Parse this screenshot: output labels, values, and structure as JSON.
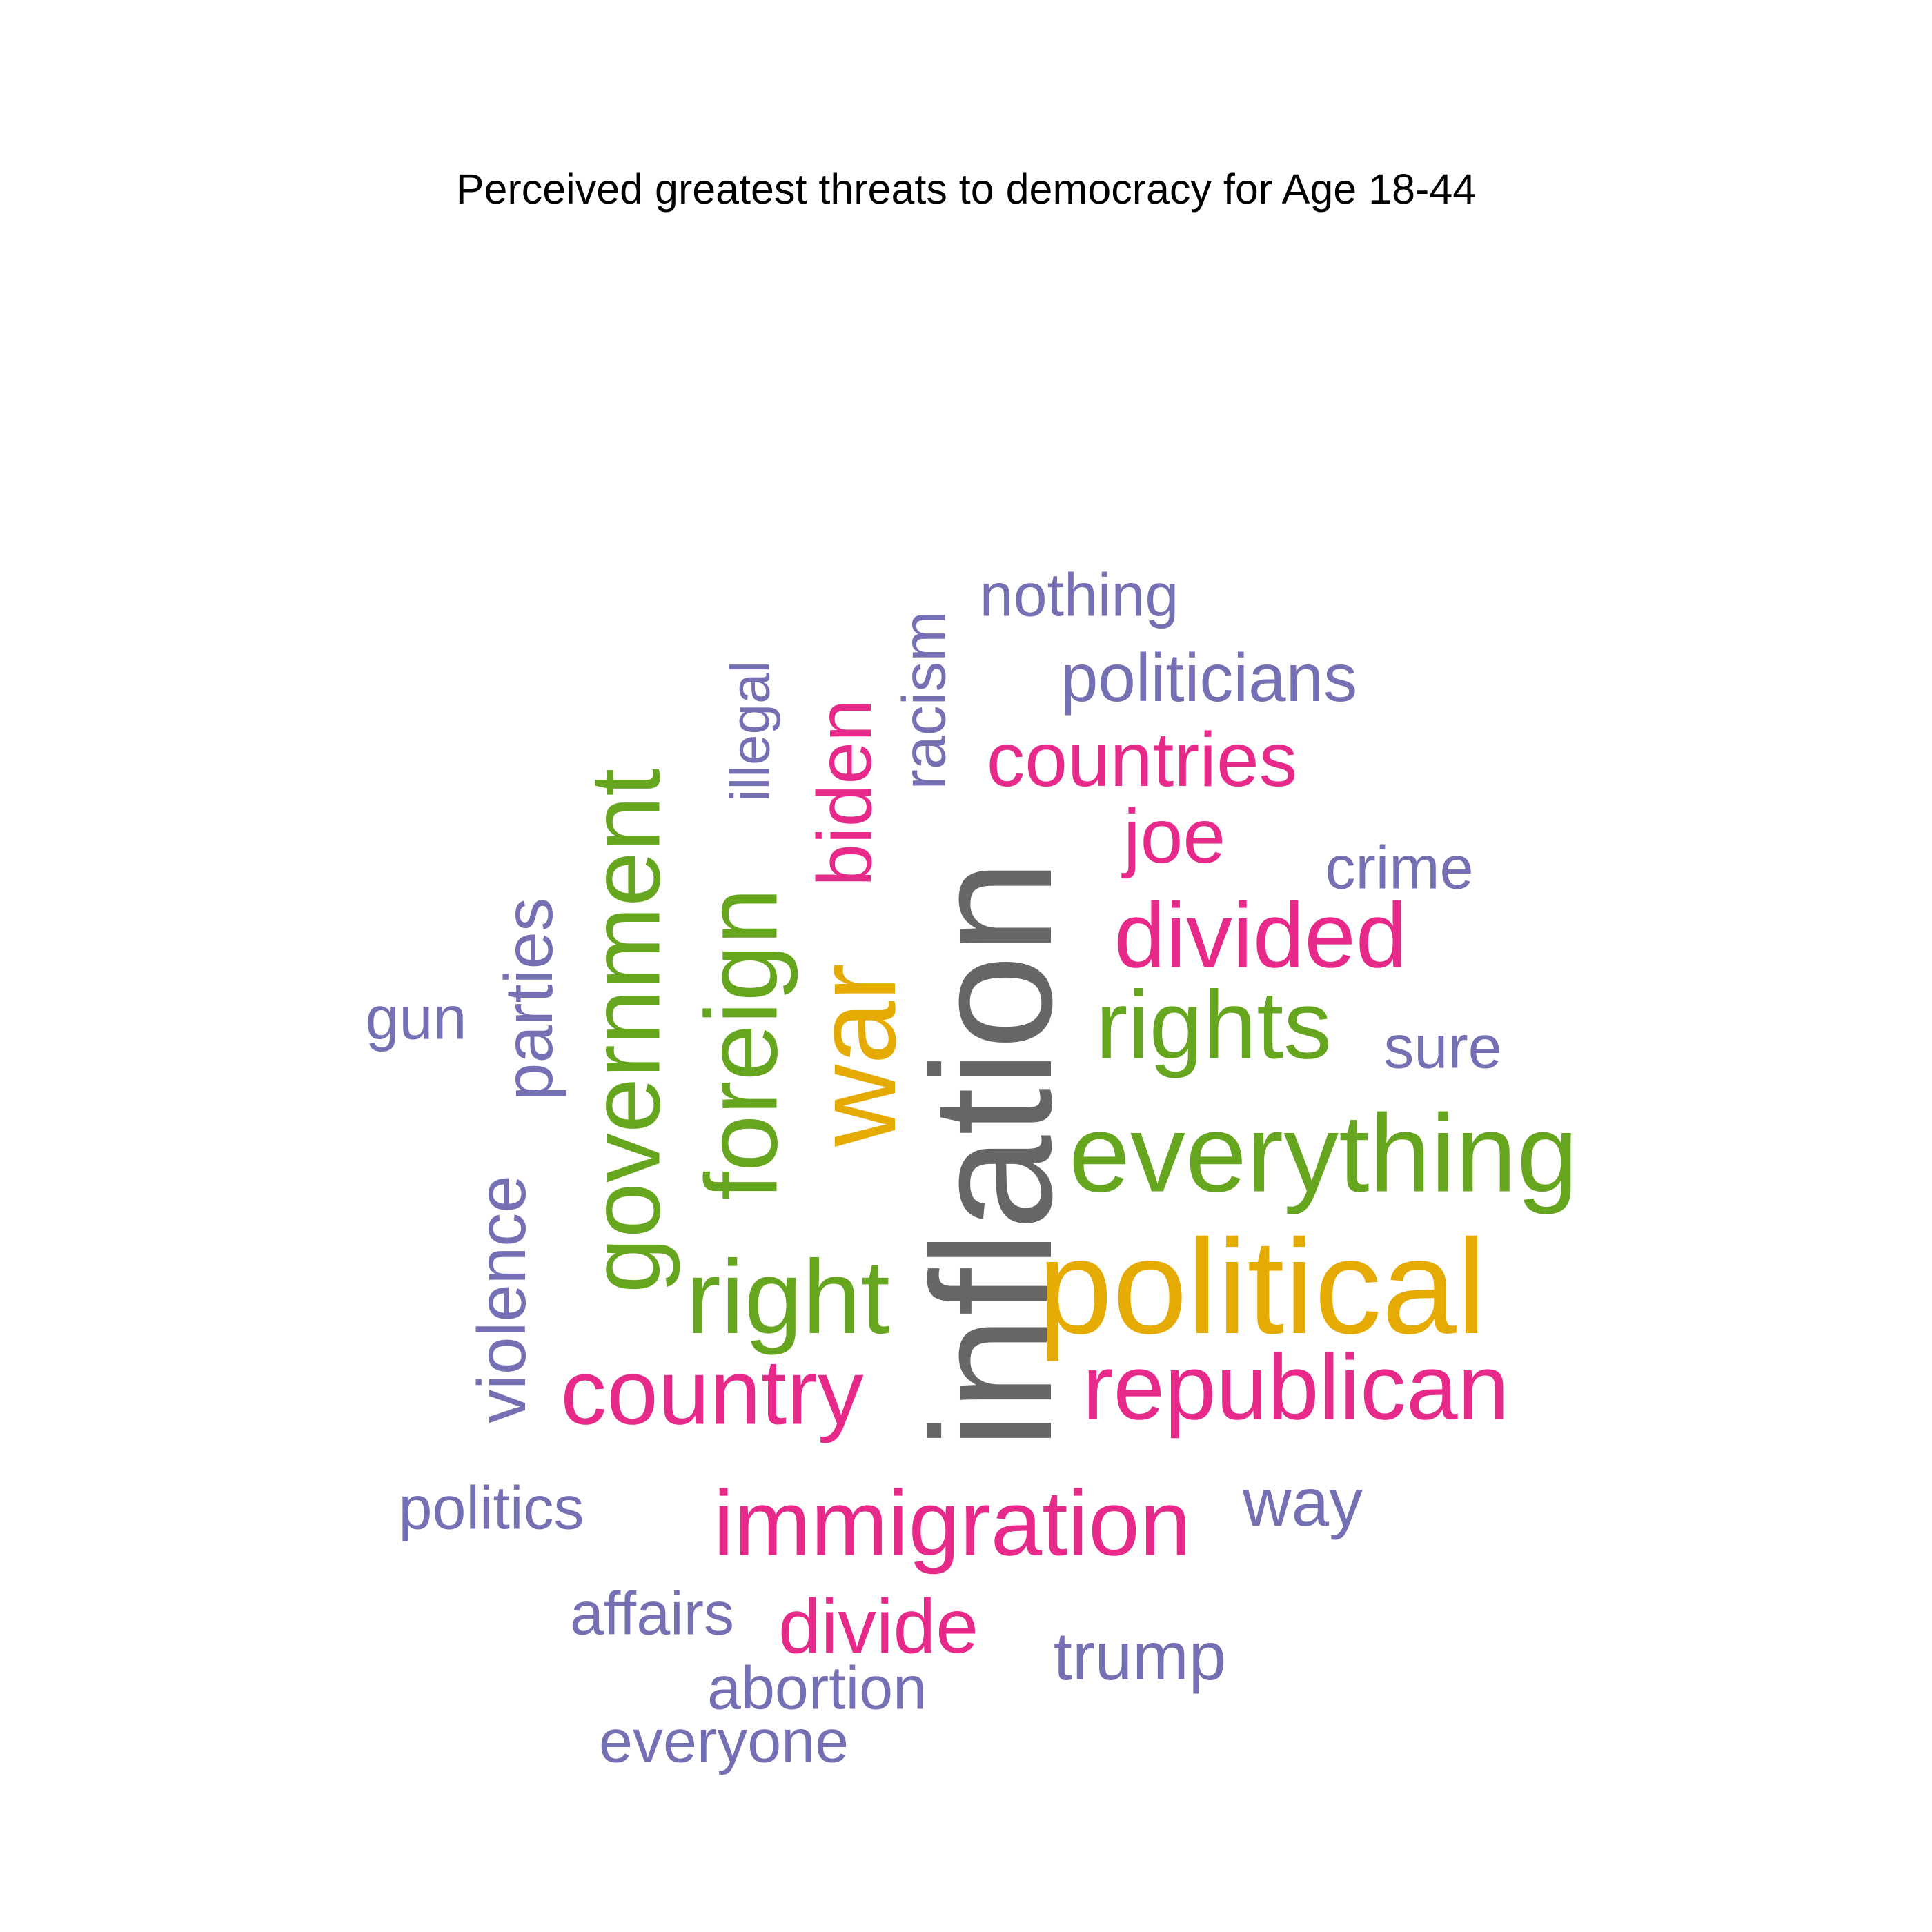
{
  "chart_data": {
    "type": "wordcloud",
    "title": "Perceived greatest threats to democracy for Age 18-44",
    "colors": {
      "gray": "#666666",
      "gold": "#E6AB02",
      "green": "#66A61E",
      "pink": "#E7298A",
      "purple": "#7570B3"
    },
    "words": [
      {
        "text": "inflation",
        "color": "#666666",
        "orientation": "vertical"
      },
      {
        "text": "political",
        "color": "#E6AB02",
        "orientation": "horizontal"
      },
      {
        "text": "war",
        "color": "#E6AB02",
        "orientation": "vertical"
      },
      {
        "text": "everything",
        "color": "#66A61E",
        "orientation": "horizontal"
      },
      {
        "text": "government",
        "color": "#66A61E",
        "orientation": "vertical"
      },
      {
        "text": "foreign",
        "color": "#66A61E",
        "orientation": "vertical"
      },
      {
        "text": "right",
        "color": "#66A61E",
        "orientation": "horizontal"
      },
      {
        "text": "rights",
        "color": "#66A61E",
        "orientation": "horizontal"
      },
      {
        "text": "republican",
        "color": "#E7298A",
        "orientation": "horizontal"
      },
      {
        "text": "immigration",
        "color": "#E7298A",
        "orientation": "horizontal"
      },
      {
        "text": "country",
        "color": "#E7298A",
        "orientation": "horizontal"
      },
      {
        "text": "divided",
        "color": "#E7298A",
        "orientation": "horizontal"
      },
      {
        "text": "countries",
        "color": "#E7298A",
        "orientation": "horizontal"
      },
      {
        "text": "joe",
        "color": "#E7298A",
        "orientation": "horizontal"
      },
      {
        "text": "biden",
        "color": "#E7298A",
        "orientation": "vertical"
      },
      {
        "text": "divide",
        "color": "#E7298A",
        "orientation": "horizontal"
      },
      {
        "text": "violence",
        "color": "#7570B3",
        "orientation": "vertical"
      },
      {
        "text": "parties",
        "color": "#7570B3",
        "orientation": "vertical"
      },
      {
        "text": "politicians",
        "color": "#7570B3",
        "orientation": "horizontal"
      },
      {
        "text": "trump",
        "color": "#7570B3",
        "orientation": "horizontal"
      },
      {
        "text": "racism",
        "color": "#7570B3",
        "orientation": "vertical"
      },
      {
        "text": "way",
        "color": "#7570B3",
        "orientation": "horizontal"
      },
      {
        "text": "abortion",
        "color": "#7570B3",
        "orientation": "horizontal"
      },
      {
        "text": "politics",
        "color": "#7570B3",
        "orientation": "horizontal"
      },
      {
        "text": "everyone",
        "color": "#7570B3",
        "orientation": "horizontal"
      },
      {
        "text": "affairs",
        "color": "#7570B3",
        "orientation": "horizontal"
      },
      {
        "text": "nothing",
        "color": "#7570B3",
        "orientation": "horizontal"
      },
      {
        "text": "crime",
        "color": "#7570B3",
        "orientation": "horizontal"
      },
      {
        "text": "sure",
        "color": "#7570B3",
        "orientation": "horizontal"
      },
      {
        "text": "gun",
        "color": "#7570B3",
        "orientation": "horizontal"
      },
      {
        "text": "illegal",
        "color": "#7570B3",
        "orientation": "vertical"
      }
    ]
  }
}
